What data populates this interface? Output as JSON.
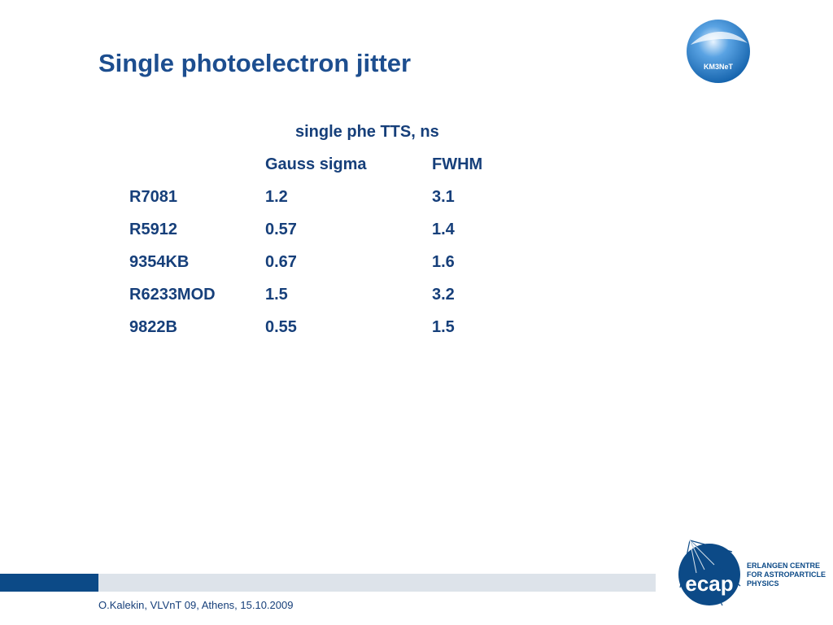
{
  "slide": {
    "title": "Single photoelectron jitter",
    "footer": "O.Kalekin, VLVnT 09, Athens, 15.10.2009"
  },
  "logos": {
    "km3net": {
      "text": "KM3NeT",
      "icon": "km3net-logo",
      "color": "#1b6fb8"
    },
    "ecap": {
      "wordmark": "ecap",
      "line1": "ERLANGEN CENTRE",
      "line2": "FOR ASTROPARTICLE",
      "line3": "PHYSICS",
      "icon": "ecap-logo",
      "color": "#0c4a87"
    }
  },
  "table": {
    "group_header": "single phe TTS, ns",
    "columns": [
      "",
      "Gauss sigma",
      "FWHM"
    ],
    "rows": [
      [
        "R7081",
        "1.2",
        "3.1"
      ],
      [
        "R5912",
        "0.57",
        "1.4"
      ],
      [
        "9354KB",
        "0.67",
        "1.6"
      ],
      [
        "R6233MOD",
        "1.5",
        "3.2"
      ],
      [
        "9822B",
        "0.55",
        "1.5"
      ]
    ]
  },
  "colors": {
    "title": "#1d4e8f",
    "text": "#163f7a",
    "bar_dark": "#0c4a87",
    "bar_light": "#dde3ea"
  }
}
